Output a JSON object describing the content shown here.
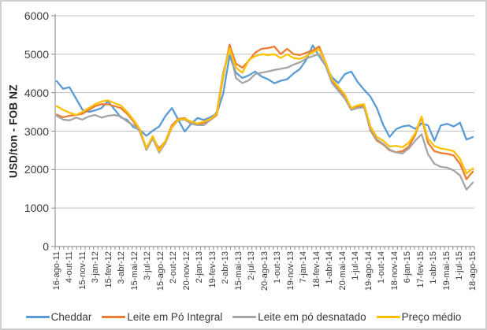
{
  "chart_data": {
    "type": "line",
    "title": "",
    "xlabel": "",
    "ylabel": "USD/ton - FOB NZ",
    "ylim": [
      0,
      6000
    ],
    "yticks": [
      0,
      1000,
      2000,
      3000,
      4000,
      5000,
      6000
    ],
    "grid": true,
    "legend_position": "bottom",
    "x_tick_labels": [
      "16-ago-11",
      "4-out-11",
      "15-nov-11",
      "3-jan-12",
      "15-fev-12",
      "3-abr-12",
      "15-mai-12",
      "3-jul-12",
      "15-ago-12",
      "2-out-12",
      "20-nov-12",
      "2-jan-13",
      "19-fev-13",
      "2-abr-13",
      "15-mai-13",
      "2-jul-13",
      "20-ago-13",
      "1-out-13",
      "19-nov-13",
      "7-jan-14",
      "18-fev-14",
      "1-abr-14",
      "20-mai-14",
      "1-jul-14",
      "19-ago-14",
      "1-out-14",
      "18-nov-14",
      "6-jan-15",
      "17-fev-15",
      "1-abr-15",
      "19-mai-15",
      "1-jul-15",
      "18-ago-15"
    ],
    "points_per_label_interval": 2,
    "series": [
      {
        "name": "Cheddar",
        "color": "#5B9BD5",
        "values": [
          4300,
          4100,
          4140,
          3850,
          3560,
          3500,
          3540,
          3600,
          3780,
          3570,
          3360,
          3290,
          3100,
          3030,
          2880,
          3010,
          3120,
          3400,
          3600,
          3290,
          2990,
          3195,
          3340,
          3290,
          3360,
          3460,
          3970,
          4960,
          4520,
          4380,
          4450,
          4550,
          4420,
          4350,
          4245,
          4310,
          4350,
          4500,
          4620,
          4860,
          5230,
          4950,
          4700,
          4400,
          4250,
          4480,
          4550,
          4280,
          4080,
          3900,
          3600,
          3160,
          2850,
          3050,
          3120,
          3150,
          3060,
          3200,
          3150,
          2750,
          3150,
          3190,
          3120,
          3220,
          2780,
          2845
        ]
      },
      {
        "name": "Leite em Pó Integral",
        "color": "#ED7D31",
        "values": [
          3430,
          3360,
          3400,
          3420,
          3450,
          3550,
          3650,
          3700,
          3700,
          3650,
          3600,
          3450,
          3250,
          2980,
          2540,
          2810,
          2550,
          2745,
          3155,
          3320,
          3340,
          3220,
          3155,
          3220,
          3290,
          3420,
          4400,
          5250,
          4750,
          4650,
          4830,
          5040,
          5140,
          5160,
          5200,
          5000,
          5140,
          5000,
          4980,
          5040,
          5100,
          5200,
          4790,
          4310,
          4110,
          3900,
          3550,
          3640,
          3670,
          3020,
          2750,
          2650,
          2500,
          2450,
          2480,
          2600,
          2900,
          3360,
          2700,
          2480,
          2430,
          2410,
          2370,
          2150,
          1750,
          1950
        ]
      },
      {
        "name": "Leite em pó desnatado",
        "color": "#A5A5A5",
        "values": [
          3400,
          3300,
          3280,
          3350,
          3300,
          3380,
          3420,
          3350,
          3400,
          3420,
          3380,
          3250,
          3150,
          3000,
          2510,
          2810,
          2440,
          2700,
          3090,
          3290,
          3300,
          3190,
          3155,
          3155,
          3290,
          3500,
          4520,
          5150,
          4380,
          4250,
          4320,
          4480,
          4520,
          4550,
          4590,
          4620,
          4650,
          4730,
          4790,
          4890,
          4950,
          5000,
          4700,
          4250,
          4050,
          3850,
          3550,
          3600,
          3620,
          3055,
          2780,
          2670,
          2520,
          2450,
          2420,
          2550,
          2750,
          2920,
          2400,
          2150,
          2070,
          2050,
          1980,
          1850,
          1480,
          1660
        ]
      },
      {
        "name": "Preço médio",
        "color": "#FFC000",
        "values": [
          3650,
          3550,
          3480,
          3420,
          3500,
          3600,
          3700,
          3770,
          3800,
          3730,
          3670,
          3500,
          3290,
          3050,
          2560,
          2870,
          2480,
          2750,
          3100,
          3300,
          3320,
          3250,
          3200,
          3250,
          3320,
          3450,
          4450,
          5150,
          4650,
          4520,
          4850,
          4950,
          5000,
          4980,
          5000,
          4900,
          5000,
          4900,
          4880,
          4950,
          5050,
          5130,
          4790,
          4350,
          4150,
          3950,
          3600,
          3670,
          3700,
          3120,
          2850,
          2750,
          2600,
          2620,
          2580,
          2700,
          2950,
          3380,
          2800,
          2610,
          2550,
          2520,
          2480,
          2280,
          1900,
          2030
        ]
      }
    ]
  },
  "colors": {
    "grid": "#BFBFBF",
    "axis": "#9B9B9B",
    "tick": "#8C8C8C",
    "text": "#3B3B3B",
    "border": "#CFCFCF"
  }
}
